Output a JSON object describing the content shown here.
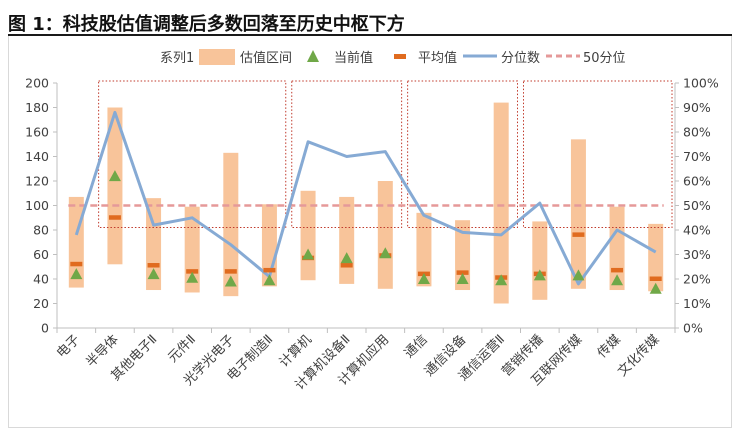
{
  "figure": {
    "title": "图 1：科技股估值调整后多数回落至历史中枢下方"
  },
  "colors": {
    "range_bar": "#f8c49a",
    "current_marker": "#70a848",
    "average_marker": "#e06b1f",
    "percentile_line": "#86aad4",
    "percentile_50_line": "#e59999",
    "group_box": "#c0392b",
    "axis_text": "#404040",
    "axis_line": "#bfbfbf"
  },
  "chart_data": {
    "type": "bar",
    "categories": [
      "电子",
      "半导体",
      "其他电子Ⅱ",
      "元件Ⅱ",
      "光学光电子",
      "电子制造Ⅱ",
      "计算机",
      "计算机设备Ⅱ",
      "计算机应用",
      "通信",
      "通信设备",
      "通信运营Ⅱ",
      "营销传播",
      "互联网传媒",
      "传媒",
      "文化传媒"
    ],
    "legend": {
      "series1": "系列1",
      "range": "估值区间",
      "current": "当前值",
      "average": "平均值",
      "percentile": "分位数",
      "percentile_50": "50分位"
    },
    "series": [
      {
        "key": "range_low",
        "values": [
          33,
          52,
          31,
          29,
          26,
          34,
          39,
          36,
          32,
          34,
          31,
          20,
          23,
          32,
          31,
          30
        ]
      },
      {
        "key": "range_high",
        "values": [
          107,
          180,
          106,
          99,
          143,
          101,
          112,
          107,
          120,
          94,
          88,
          184,
          87,
          154,
          99,
          85
        ]
      },
      {
        "key": "current",
        "values": [
          44,
          124,
          44,
          41,
          38,
          39,
          60,
          57,
          61,
          40,
          40,
          39,
          43,
          43,
          39,
          32
        ]
      },
      {
        "key": "average",
        "values": [
          52,
          90,
          51,
          46,
          46,
          47,
          57,
          51,
          59,
          44,
          45,
          41,
          44,
          76,
          47,
          40
        ]
      },
      {
        "key": "percentile",
        "values": [
          0.38,
          0.88,
          0.42,
          0.45,
          0.34,
          0.21,
          0.76,
          0.7,
          0.72,
          0.46,
          0.39,
          0.38,
          0.51,
          0.18,
          0.4,
          0.31
        ]
      }
    ],
    "percentile_50": 0.5,
    "ylim_left": [
      0,
      200
    ],
    "yticks_left": [
      "0",
      "20",
      "40",
      "60",
      "80",
      "100",
      "120",
      "140",
      "160",
      "180",
      "200"
    ],
    "ylim_right": [
      0,
      1
    ],
    "yticks_right": [
      "0%",
      "10%",
      "20%",
      "30%",
      "40%",
      "50%",
      "60%",
      "70%",
      "80%",
      "90%",
      "100%"
    ],
    "groups": [
      {
        "from": 1,
        "to": 5
      },
      {
        "from": 6,
        "to": 8
      },
      {
        "from": 9,
        "to": 11
      },
      {
        "from": 12,
        "to": 15
      }
    ]
  }
}
